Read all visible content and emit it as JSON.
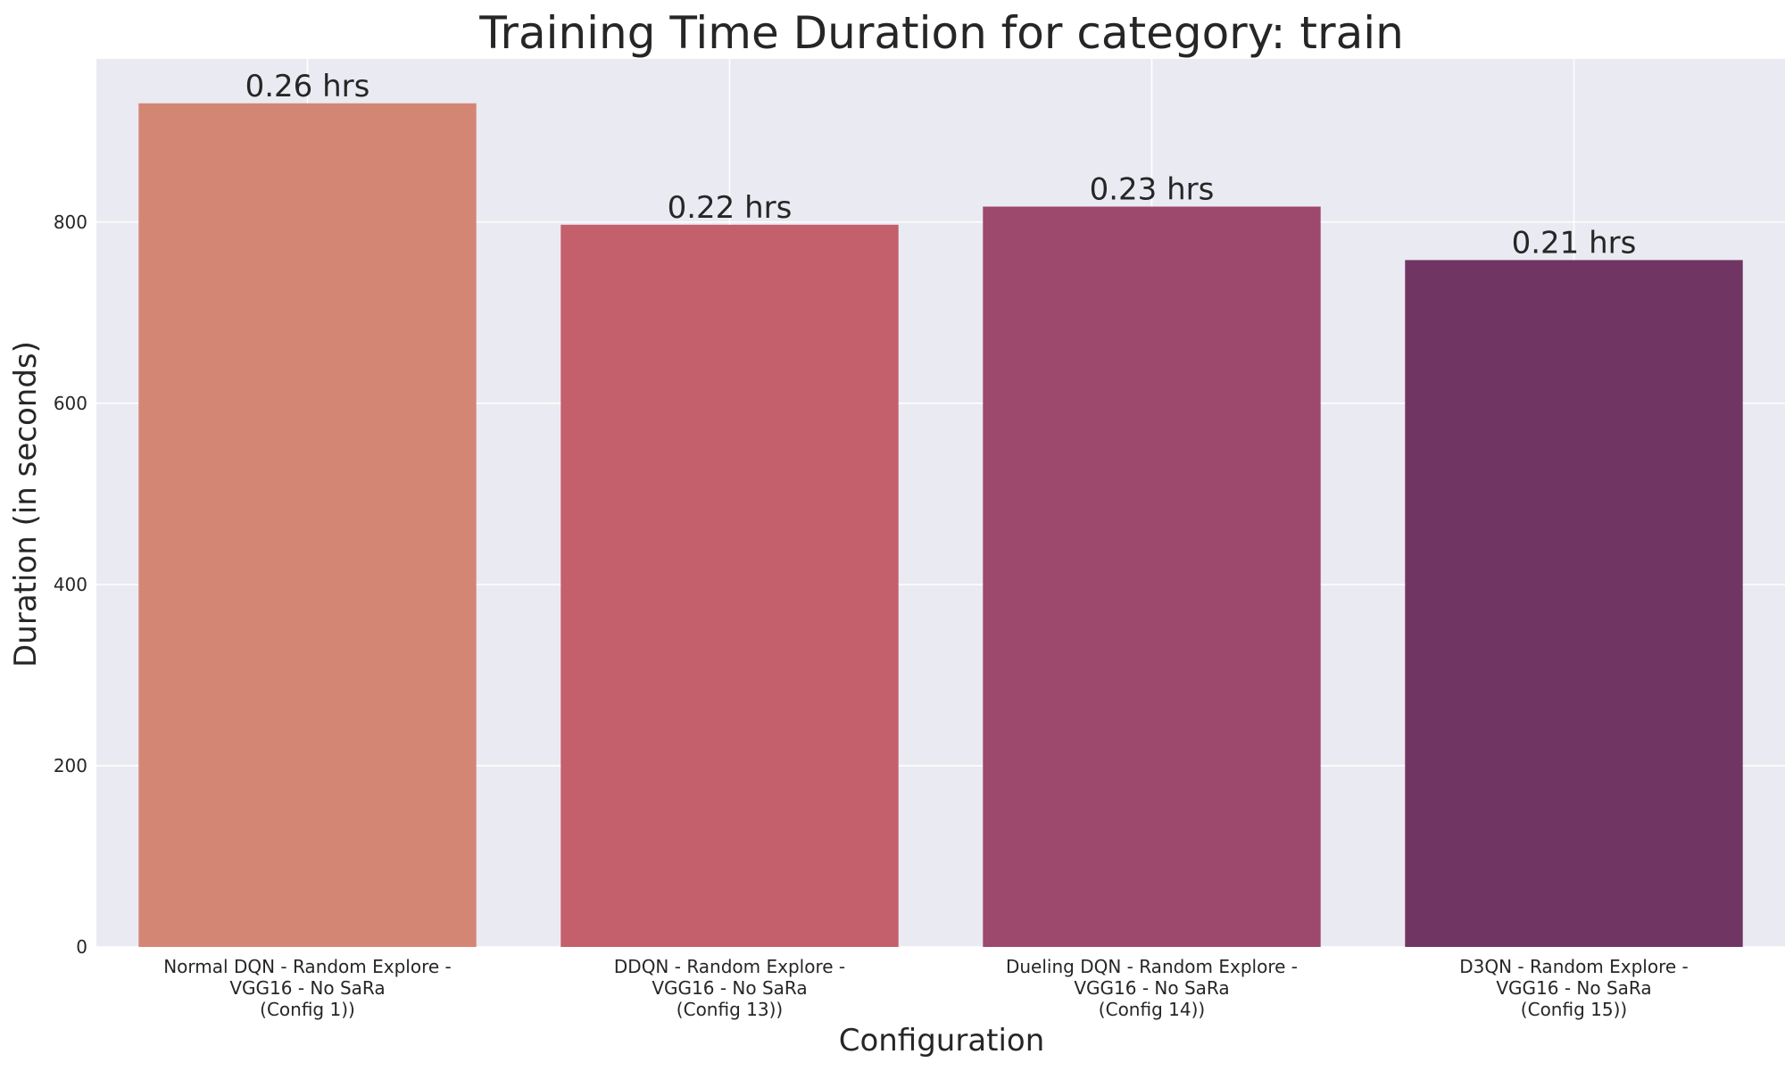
{
  "chart_data": {
    "type": "bar",
    "title": "Training Time Duration for category: train",
    "xlabel": "Configuration",
    "ylabel": "Duration (in seconds)",
    "ylim": [
      0,
      980
    ],
    "yticks": [
      0,
      200,
      400,
      600,
      800
    ],
    "grid": true,
    "legend": "none",
    "categories": [
      [
        "Normal DQN - Random Explore -",
        "VGG16 - No SaRa",
        "(Config 1))"
      ],
      [
        "DDQN - Random Explore -",
        "VGG16 - No SaRa",
        "(Config 13))"
      ],
      [
        "Dueling DQN - Random Explore -",
        "VGG16 - No SaRa",
        "(Config 14))"
      ],
      [
        "D3QN - Random Explore -",
        "VGG16 - No SaRa",
        "(Config 15))"
      ]
    ],
    "values": [
      931,
      797,
      817,
      758
    ],
    "data_labels": [
      "0.26 hrs",
      "0.22 hrs",
      "0.23 hrs",
      "0.21 hrs"
    ],
    "colors": [
      "#d48674",
      "#c4606b",
      "#9d486d",
      "#713563"
    ],
    "background_color": "#eaeaf2",
    "grid_color": "#ffffff"
  }
}
